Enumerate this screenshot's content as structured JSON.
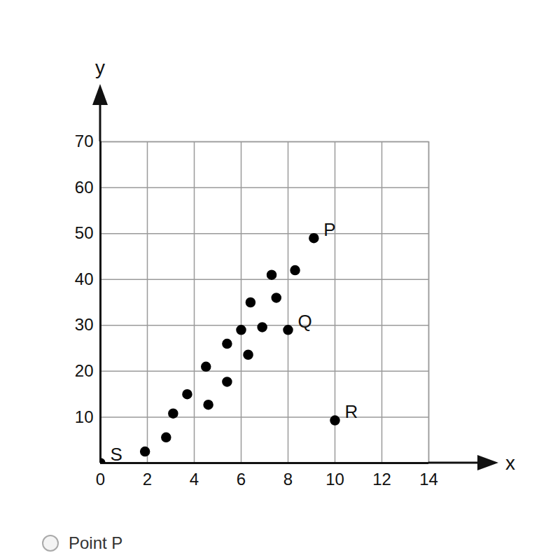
{
  "chart_data": {
    "type": "scatter",
    "x_label": "x",
    "y_label": "y",
    "caption": "Point P",
    "x": [
      0,
      1.9,
      2.8,
      3.1,
      3.7,
      4.5,
      4.6,
      5.4,
      5.4,
      6.0,
      6.4,
      6.3,
      6.9,
      7.3,
      7.5,
      8.3,
      8.0,
      9.1,
      10.0
    ],
    "values": [
      0,
      2.5,
      5.6,
      10.8,
      15,
      21,
      12.7,
      26,
      17.7,
      29,
      35,
      23.6,
      29.6,
      41,
      36,
      42,
      29,
      49,
      9.3
    ],
    "point_labels": [
      "S",
      null,
      null,
      null,
      null,
      null,
      null,
      null,
      null,
      null,
      null,
      null,
      null,
      null,
      null,
      null,
      "Q",
      "P",
      "R"
    ],
    "color": "#000000",
    "marker": "circle",
    "xlim": [
      0,
      14
    ],
    "ylim": [
      0,
      70
    ],
    "xticks": [
      0,
      2,
      4,
      6,
      8,
      10,
      12,
      14
    ],
    "yticks": [
      10,
      20,
      30,
      40,
      50,
      60,
      70
    ],
    "grid": true
  }
}
